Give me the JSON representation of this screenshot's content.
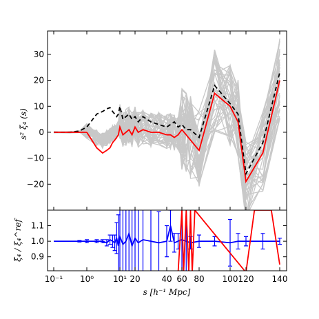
{
  "chart_data": [
    {
      "type": "line",
      "panel": "main",
      "ylabel": "s² ξ₄ (s)",
      "ylim": [
        -30,
        39
      ],
      "yticks": [
        -20,
        -10,
        0,
        10,
        20,
        30
      ],
      "yticklabels": [
        "−20",
        "−10",
        "0",
        "10",
        "20",
        "30"
      ],
      "grey_band_count": 40,
      "colors": {
        "grey": "#c8c8c8",
        "red": "#ff0000",
        "black": "#000000",
        "blue": "#0000ff"
      },
      "series": [
        {
          "style": "solid red",
          "x": [
            0.1,
            0.3,
            0.6,
            1.0,
            2.0,
            3.0,
            4.0,
            5.0,
            6.0,
            7.0,
            8.0,
            9.0,
            10,
            12,
            14,
            16,
            18,
            20,
            22,
            25,
            30,
            35,
            40,
            45,
            50,
            55,
            60,
            65,
            70,
            80,
            90,
            100,
            110,
            120,
            130,
            140
          ],
          "y": [
            0,
            0,
            0,
            0,
            -6,
            -8,
            -7,
            -6,
            -4,
            -3,
            -2,
            -1,
            2,
            -1,
            0,
            1,
            -1,
            2,
            0,
            1,
            0,
            0,
            -1,
            -1,
            -2,
            -1,
            1,
            -1,
            -3,
            -7,
            15,
            10,
            4,
            -19,
            -8,
            20
          ]
        },
        {
          "style": "dashed black",
          "x": [
            0.1,
            0.3,
            0.6,
            1.0,
            2.0,
            3.0,
            4.0,
            5.0,
            6.0,
            7.0,
            8.0,
            9.0,
            10,
            12,
            14,
            16,
            18,
            20,
            22,
            25,
            30,
            35,
            40,
            45,
            50,
            55,
            60,
            65,
            70,
            80,
            90,
            100,
            110,
            120,
            130,
            140
          ],
          "y": [
            0,
            0,
            0.5,
            2,
            7,
            8,
            9,
            9.5,
            8,
            7,
            6,
            7,
            10,
            5,
            6,
            7,
            5,
            6,
            4,
            6,
            4,
            3,
            2,
            3,
            4,
            2,
            3,
            1,
            1,
            -2,
            18,
            11,
            7,
            -16,
            -4,
            23
          ]
        }
      ]
    },
    {
      "type": "line",
      "panel": "ratio",
      "ylabel": "ξ̃₄ / ξ₄^ref",
      "xlabel": "s [h⁻¹ Mpc]",
      "ylim": [
        0.81,
        1.2
      ],
      "yticks": [
        0.9,
        1.0,
        1.1
      ],
      "yticklabels": [
        "0.9",
        "1.0",
        "1.1"
      ],
      "xticks": [
        {
          "label": "10⁻¹",
          "x": 0.1
        },
        {
          "label": "10⁰",
          "x": 1
        },
        {
          "label": "10¹",
          "x": 10
        },
        {
          "label": "20",
          "x": 20
        },
        {
          "label": "40",
          "x": 40
        },
        {
          "label": "60",
          "x": 60
        },
        {
          "label": "80",
          "x": 80
        },
        {
          "label": "100",
          "x": 100
        },
        {
          "label": "120",
          "x": 120
        },
        {
          "label": "140",
          "x": 140
        }
      ],
      "series": [
        {
          "style": "blue with errorbars",
          "x": [
            0.1,
            0.3,
            0.6,
            1.0,
            2.0,
            3.0,
            4.0,
            5.0,
            6.0,
            7.0,
            8.0,
            9.0,
            10,
            12,
            14,
            16,
            18,
            20,
            22,
            25,
            30,
            35,
            40,
            45,
            50,
            55,
            60,
            65,
            70,
            80,
            90,
            100,
            110,
            120,
            130,
            140
          ],
          "y": [
            1.0,
            1.0,
            1.0,
            1.0,
            1.0,
            1.0,
            0.99,
            1.01,
            1.0,
            0.99,
            1.02,
            0.97,
            1.03,
            0.98,
            1.0,
            1.05,
            0.97,
            1.02,
            0.99,
            1.01,
            1.0,
            0.99,
            1.0,
            1.1,
            0.99,
            1.0,
            1.01,
            1.0,
            0.99,
            1.0,
            1.0,
            0.99,
            1.0,
            1.0,
            1.0,
            1.0
          ],
          "err": [
            0,
            0,
            0.005,
            0.01,
            0.01,
            0.01,
            0.02,
            0.03,
            0.04,
            0.05,
            0.1,
            0.2,
            0.25,
            0.3,
            0.3,
            0.3,
            0.3,
            0.3,
            0.3,
            0.3,
            0.3,
            0.2,
            0.1,
            0.1,
            0.06,
            0.05,
            0.3,
            0.3,
            0.04,
            0.04,
            0.03,
            0.15,
            0.05,
            0.03,
            0.05,
            0.02
          ]
        },
        {
          "style": "solid red",
          "x": [
            55,
            60,
            62,
            65,
            68,
            70,
            72,
            75,
            120,
            125,
            130,
            135,
            140
          ],
          "y": [
            0.8,
            1.2,
            0.8,
            1.2,
            0.8,
            1.2,
            0.8,
            1.2,
            0.8,
            1.2,
            1.2,
            1.2,
            0.85
          ]
        }
      ]
    }
  ]
}
